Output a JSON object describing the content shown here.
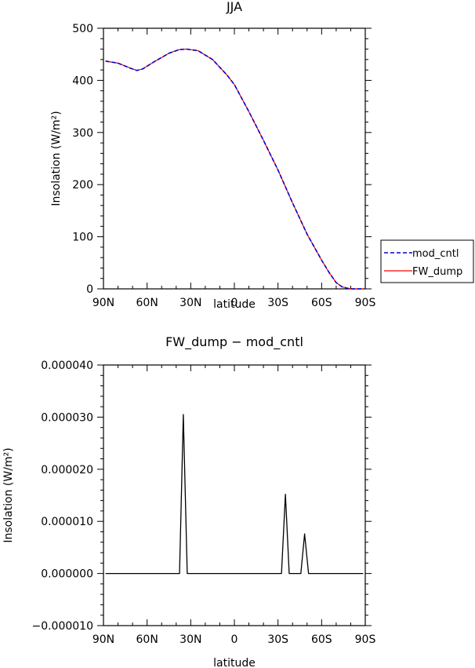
{
  "chart_data": [
    {
      "type": "line",
      "title": "JJA",
      "xlabel": "latitude",
      "ylabel": "Insolation (W/m²)",
      "xlim": [
        90,
        -90
      ],
      "ylim": [
        0,
        500
      ],
      "xticks": [
        90,
        60,
        30,
        0,
        -30,
        -60,
        -90
      ],
      "xtick_labels": [
        "90N",
        "60N",
        "30N",
        "0",
        "30S",
        "60S",
        "90S"
      ],
      "yticks": [
        0,
        100,
        200,
        300,
        400,
        500
      ],
      "ytick_labels": [
        "0",
        "100",
        "200",
        "300",
        "400",
        "500"
      ],
      "legend_position": "right-outside",
      "colors": {
        "mod_cntl": "#0000cc",
        "FW_dump": "#ff0000"
      },
      "x": [
        88.6,
        80,
        72,
        67,
        63,
        55,
        45,
        38,
        33,
        25,
        15,
        5,
        0,
        -10,
        -20,
        -30,
        -40,
        -50,
        -60,
        -65,
        -70,
        -74,
        -78,
        -81,
        -84,
        -88.6
      ],
      "series": [
        {
          "name": "mod_cntl",
          "values": [
            437,
            433,
            424,
            419,
            422,
            436,
            452,
            459,
            460,
            457,
            440,
            410,
            392,
            340,
            285,
            228,
            165,
            105,
            55,
            32,
            12,
            4,
            1,
            0,
            0,
            0
          ]
        },
        {
          "name": "FW_dump",
          "values": [
            437,
            433,
            424,
            419,
            422,
            436,
            452,
            459,
            460,
            457,
            440,
            410,
            392,
            340,
            285,
            228,
            165,
            105,
            55,
            32,
            12,
            4,
            1,
            0,
            0,
            0
          ]
        }
      ]
    },
    {
      "type": "line",
      "title": "FW_dump − mod_cntl",
      "xlabel": "latitude",
      "ylabel": "Insolation (W/m²)",
      "xlim": [
        90,
        -90
      ],
      "ylim": [
        -1e-05,
        4e-05
      ],
      "xticks": [
        90,
        60,
        30,
        0,
        -30,
        -60,
        -90
      ],
      "xtick_labels": [
        "90N",
        "60N",
        "30N",
        "0",
        "30S",
        "60S",
        "90S"
      ],
      "yticks": [
        -1e-05,
        0,
        1e-05,
        2e-05,
        3e-05,
        4e-05
      ],
      "ytick_labels": [
        "−0.000010",
        "0.000000",
        "0.000010",
        "0.000020",
        "0.000030",
        "0.000040"
      ],
      "x": [
        88.6,
        37.7,
        35.1,
        32.4,
        -32.4,
        -35.1,
        -37.7,
        -45.7,
        -48.3,
        -51.0,
        -88.6
      ],
      "series": [
        {
          "name": "",
          "values": [
            0,
            0,
            3.05e-05,
            0,
            0,
            1.52e-05,
            0,
            0,
            7.6e-06,
            0,
            0
          ]
        }
      ]
    }
  ]
}
